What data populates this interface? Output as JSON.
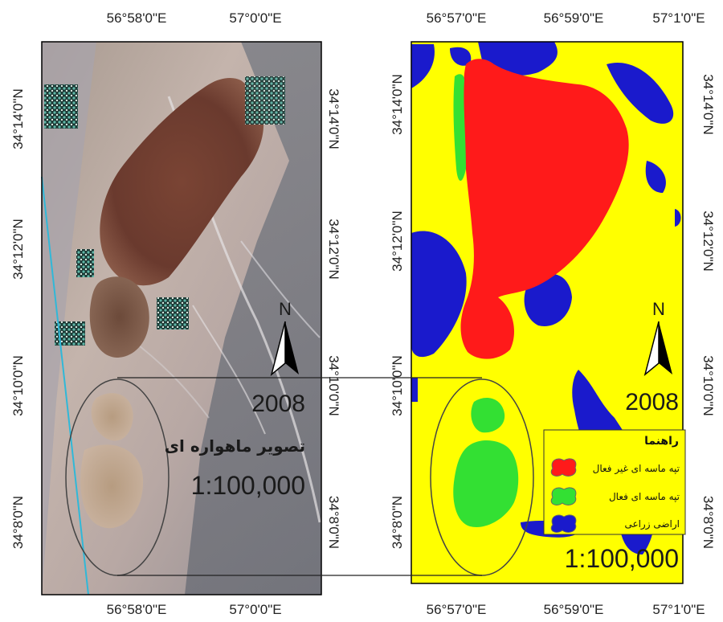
{
  "left_map": {
    "top_lon_labels": [
      "56°58'0\"E",
      "57°0'0\"E"
    ],
    "bottom_lon_labels": [
      "56°58'0\"E",
      "57°0'0\"E"
    ],
    "left_lat_labels": [
      "34°14'0\"N",
      "34°12'0\"N",
      "34°10'0\"N",
      "34°8'0\"N"
    ],
    "right_lat_labels": [
      "34°14'0\"N",
      "34°12'0\"N",
      "34°10'0\"N",
      "34°8'0\"N"
    ],
    "north_letter": "N",
    "year": "2008",
    "caption": "تصویر ماهواره ای",
    "scale": "1:100,000"
  },
  "right_map": {
    "top_lon_labels": [
      "56°57'0\"E",
      "56°59'0\"E",
      "57°1'0\"E"
    ],
    "bottom_lon_labels": [
      "56°57'0\"E",
      "56°59'0\"E",
      "57°1'0\"E"
    ],
    "left_lat_labels": [
      "34°14'0\"N",
      "34°12'0\"N",
      "34°10'0\"N",
      "34°8'0\"N"
    ],
    "right_lat_labels": [
      "34°14'0\"N",
      "34°12'0\"N",
      "34°10'0\"N",
      "34°8'0\"N"
    ],
    "north_letter": "N",
    "year": "2008",
    "scale": "1:100,000",
    "legend": {
      "title": "راهنما",
      "items": [
        {
          "label": "تپه ماسه ای غیر فعال",
          "color": "#ff1a1a"
        },
        {
          "label": "تپه ماسه ای فعال",
          "color": "#33e033"
        },
        {
          "label": "اراضی زراعی",
          "color": "#1a1acc"
        }
      ]
    },
    "colors": {
      "background": "#ffff00",
      "inactive_dune": "#ff1a1a",
      "active_dune": "#33e033",
      "agriculture": "#1a1acc"
    }
  }
}
